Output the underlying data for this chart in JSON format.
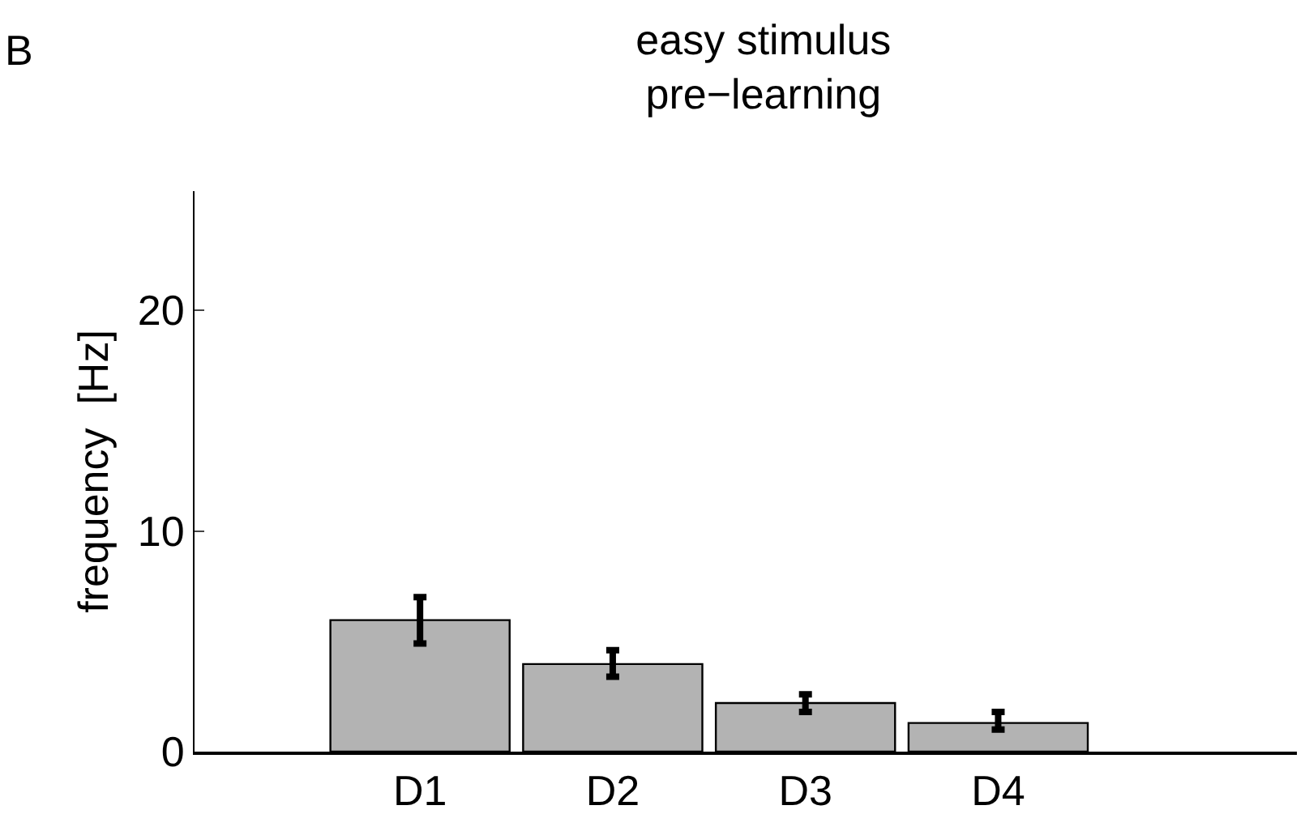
{
  "chart_data": {
    "type": "bar",
    "title": "easy stimulus\npre−learning",
    "ylabel": "frequency  [Hz]",
    "annotations": [
      "B"
    ],
    "categories": [
      "D1",
      "D2",
      "D3",
      "D4"
    ],
    "values": [
      5.96,
      3.97,
      2.2,
      1.3
    ],
    "errors": [
      [
        4.9,
        7.0
      ],
      [
        3.4,
        4.6
      ],
      [
        1.8,
        2.6
      ],
      [
        1.0,
        1.8
      ]
    ],
    "color": "#b3b3b3",
    "ylim": [
      0,
      25.4
    ],
    "yticks": [
      0,
      10,
      20
    ],
    "legend": false
  }
}
